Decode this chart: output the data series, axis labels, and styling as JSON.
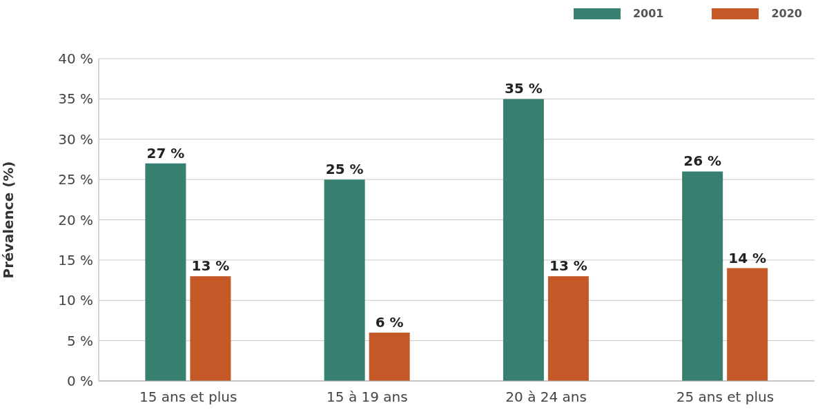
{
  "chart_data": {
    "type": "bar",
    "ylabel": "Prévalence (%)",
    "categories": [
      "15 ans et plus",
      "15 à 19 ans",
      "20 à 24 ans",
      "25 ans et plus"
    ],
    "series": [
      {
        "name": "2001",
        "color": "#37806f",
        "values": [
          27,
          25,
          35,
          26
        ],
        "value_labels": [
          "27 %",
          "25 %",
          "35 %",
          "26 %"
        ]
      },
      {
        "name": "2020",
        "color": "#c45927",
        "values": [
          13,
          6,
          13,
          14
        ],
        "value_labels": [
          "13 %",
          "6 %",
          "13 %",
          "14 %"
        ]
      }
    ],
    "ylim": [
      0,
      40
    ],
    "yticks": [
      {
        "value": 0,
        "label": "0 %"
      },
      {
        "value": 5,
        "label": "5 %"
      },
      {
        "value": 10,
        "label": "10 %"
      },
      {
        "value": 15,
        "label": "15 %"
      },
      {
        "value": 20,
        "label": "20 %"
      },
      {
        "value": 25,
        "label": "25 %"
      },
      {
        "value": 30,
        "label": "30 %"
      },
      {
        "value": 35,
        "label": "35 %"
      },
      {
        "value": 40,
        "label": "40 %"
      }
    ],
    "grid": "y",
    "legend": "top right"
  }
}
